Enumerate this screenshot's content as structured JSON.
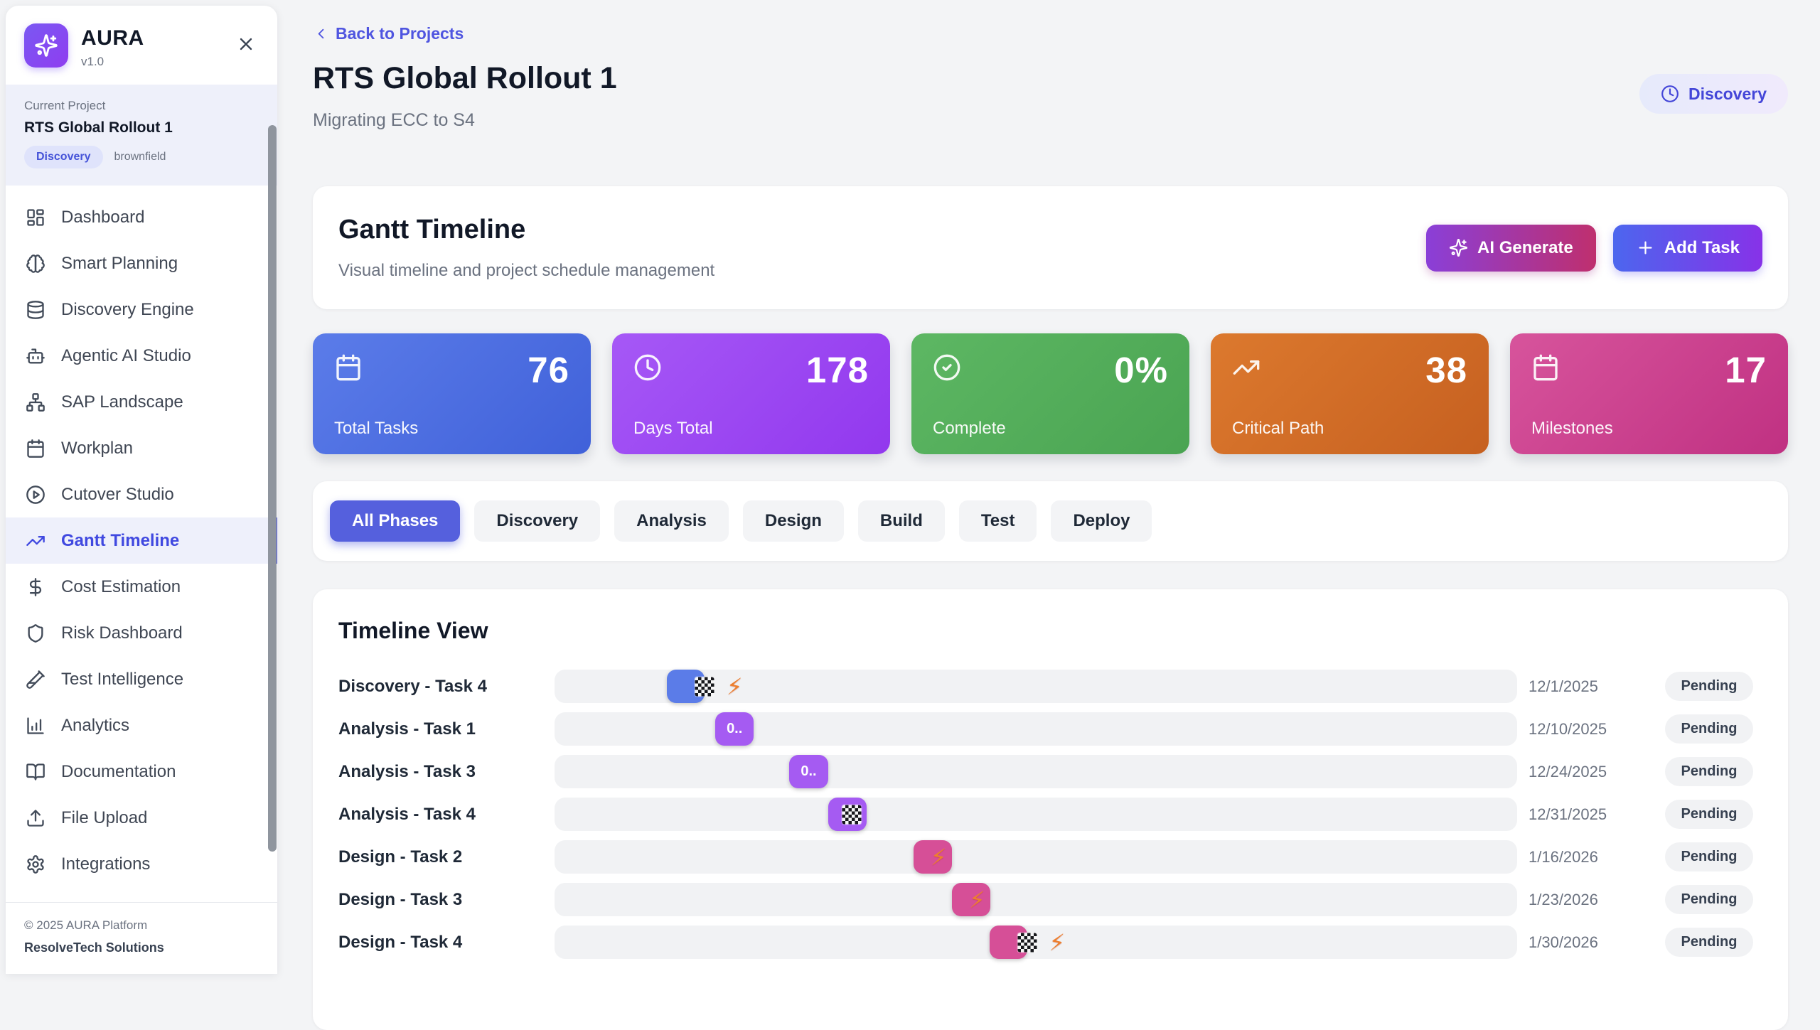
{
  "app": {
    "name": "AURA",
    "version": "v1.0"
  },
  "sidebar": {
    "current_project": {
      "label": "Current Project",
      "name": "RTS Global Rollout 1",
      "phase_badge": "Discovery",
      "type_badge": "brownfield"
    },
    "nav": [
      {
        "label": "Dashboard",
        "icon": "dashboard",
        "active": false
      },
      {
        "label": "Smart Planning",
        "icon": "brain",
        "active": false
      },
      {
        "label": "Discovery Engine",
        "icon": "database",
        "active": false
      },
      {
        "label": "Agentic AI Studio",
        "icon": "robot",
        "active": false
      },
      {
        "label": "SAP Landscape",
        "icon": "sitemap",
        "active": false
      },
      {
        "label": "Workplan",
        "icon": "calendar",
        "active": false
      },
      {
        "label": "Cutover Studio",
        "icon": "play",
        "active": false
      },
      {
        "label": "Gantt Timeline",
        "icon": "trending",
        "active": true
      },
      {
        "label": "Cost Estimation",
        "icon": "dollar",
        "active": false
      },
      {
        "label": "Risk Dashboard",
        "icon": "shield",
        "active": false
      },
      {
        "label": "Test Intelligence",
        "icon": "testtube",
        "active": false
      },
      {
        "label": "Analytics",
        "icon": "chart",
        "active": false
      },
      {
        "label": "Documentation",
        "icon": "book",
        "active": false
      },
      {
        "label": "File Upload",
        "icon": "upload",
        "active": false
      },
      {
        "label": "Integrations",
        "icon": "gear",
        "active": false
      }
    ],
    "footer": {
      "line1": "© 2025 AURA Platform",
      "line2": "ResolveTech Solutions"
    }
  },
  "header": {
    "back_label": "Back to Projects",
    "title": "RTS Global Rollout 1",
    "subtitle": "Migrating ECC to S4",
    "status": "Discovery"
  },
  "gantt": {
    "title": "Gantt Timeline",
    "subtitle": "Visual timeline and project schedule management",
    "ai_button": "AI Generate",
    "add_button": "Add Task"
  },
  "stats": [
    {
      "value": "76",
      "label": "Total Tasks",
      "icon": "calendar",
      "from": "#5b7ce9",
      "to": "#4061d9"
    },
    {
      "value": "178",
      "label": "Days Total",
      "icon": "clock",
      "from": "#a658f6",
      "to": "#9238ee"
    },
    {
      "value": "0%",
      "label": "Complete",
      "icon": "check",
      "from": "#5db763",
      "to": "#4aa452"
    },
    {
      "value": "38",
      "label": "Critical Path",
      "icon": "trending",
      "from": "#dc792e",
      "to": "#c66020"
    },
    {
      "value": "17",
      "label": "Milestones",
      "icon": "calendar",
      "from": "#d7549c",
      "to": "#c03182"
    }
  ],
  "phases": [
    {
      "label": "All Phases",
      "active": true
    },
    {
      "label": "Discovery",
      "active": false
    },
    {
      "label": "Analysis",
      "active": false
    },
    {
      "label": "Design",
      "active": false
    },
    {
      "label": "Build",
      "active": false
    },
    {
      "label": "Test",
      "active": false
    },
    {
      "label": "Deploy",
      "active": false
    }
  ],
  "timeline": {
    "title": "Timeline View",
    "phase_colors": {
      "discovery": "#5b7ce8",
      "analysis": "#a55bf2",
      "design": "#d64f97"
    },
    "rows": [
      {
        "label": "Discovery - Task 4",
        "phase": "discovery",
        "start_pct": 11.7,
        "width_pct": 3.9,
        "bar_label": "",
        "flag": "edge",
        "bolt": "outside",
        "date": "12/1/2025",
        "status": "Pending"
      },
      {
        "label": "Analysis - Task 1",
        "phase": "analysis",
        "start_pct": 16.7,
        "width_pct": 4.0,
        "bar_label": "0..",
        "flag": null,
        "bolt": null,
        "date": "12/10/2025",
        "status": "Pending"
      },
      {
        "label": "Analysis - Task 3",
        "phase": "analysis",
        "start_pct": 24.4,
        "width_pct": 4.0,
        "bar_label": "0..",
        "flag": null,
        "bolt": null,
        "date": "12/24/2025",
        "status": "Pending"
      },
      {
        "label": "Analysis - Task 4",
        "phase": "analysis",
        "start_pct": 28.4,
        "width_pct": 4.0,
        "bar_label": "",
        "flag": "inside",
        "bolt": null,
        "date": "12/31/2025",
        "status": "Pending"
      },
      {
        "label": "Design - Task 2",
        "phase": "design",
        "start_pct": 37.3,
        "width_pct": 4.0,
        "bar_label": "",
        "flag": null,
        "bolt": "inside",
        "date": "1/16/2026",
        "status": "Pending"
      },
      {
        "label": "Design - Task 3",
        "phase": "design",
        "start_pct": 41.3,
        "width_pct": 4.0,
        "bar_label": "",
        "flag": null,
        "bolt": "inside",
        "date": "1/23/2026",
        "status": "Pending"
      },
      {
        "label": "Design - Task 4",
        "phase": "design",
        "start_pct": 45.2,
        "width_pct": 3.9,
        "bar_label": "",
        "flag": "edge",
        "bolt": "outside",
        "date": "1/30/2026",
        "status": "Pending"
      }
    ]
  }
}
